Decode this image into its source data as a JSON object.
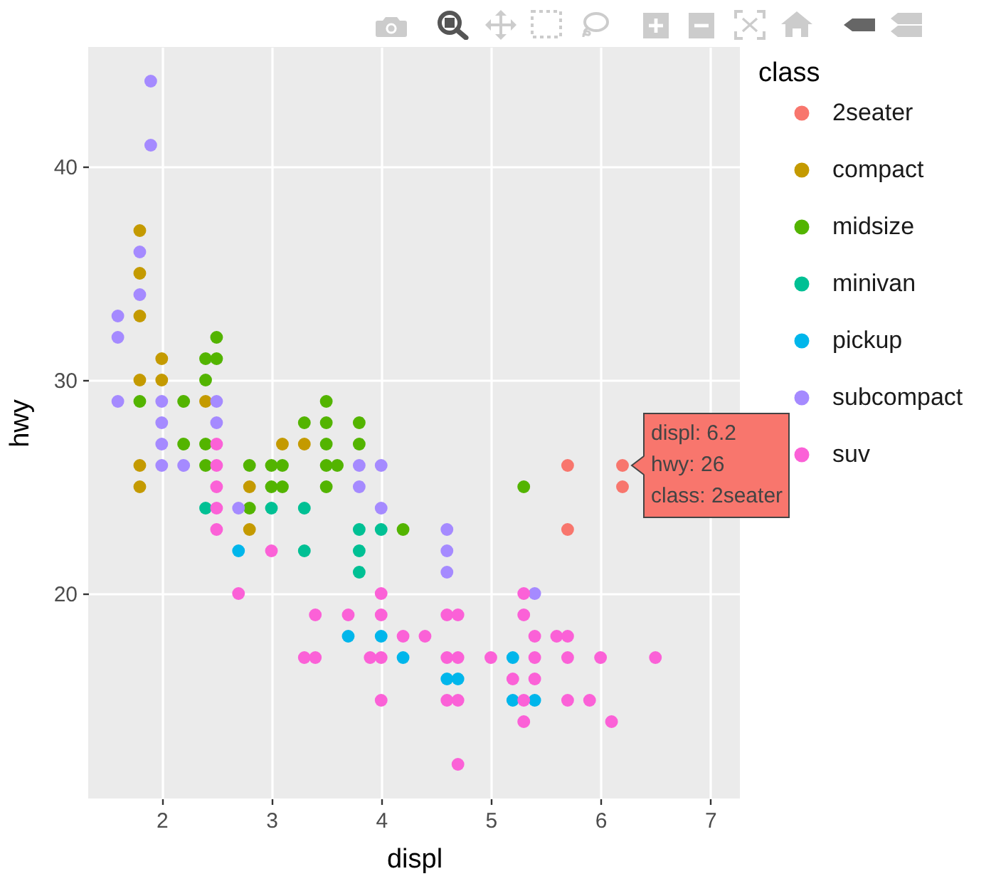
{
  "chart_data": {
    "type": "scatter",
    "xlabel": "displ",
    "ylabel": "hwy",
    "legend_title": "class",
    "xlim": [
      1.33,
      7.27
    ],
    "ylim": [
      10.4,
      45.6
    ],
    "xticks": [
      2,
      3,
      4,
      5,
      6,
      7
    ],
    "yticks": [
      20,
      30,
      40
    ],
    "grid": true,
    "legend": "right",
    "marker": "circle",
    "series": [
      {
        "name": "2seater",
        "color": "#F8766D",
        "x": [
          5.7,
          6.2,
          6.2,
          5.7
        ],
        "values": [
          26,
          26,
          25,
          23
        ]
      },
      {
        "name": "compact",
        "color": "#C49A00",
        "x": [
          1.8,
          1.8,
          1.8,
          2.0,
          1.8,
          2.0,
          2.4,
          3.1,
          3.3,
          1.8,
          1.8,
          2.8,
          2.8
        ],
        "values": [
          37,
          35,
          33,
          31,
          30,
          30,
          29,
          27,
          27,
          26,
          25,
          25,
          23
        ]
      },
      {
        "name": "midsize",
        "color": "#53B400",
        "x": [
          2.5,
          2.4,
          2.5,
          2.4,
          1.8,
          2.2,
          3.5,
          3.3,
          3.5,
          3.8,
          2.2,
          2.4,
          3.5,
          3.8,
          2.4,
          2.8,
          3.0,
          3.1,
          3.5,
          3.6,
          3.0,
          3.1,
          3.5,
          5.3,
          2.8,
          4.2
        ],
        "values": [
          32,
          31,
          31,
          30,
          29,
          29,
          29,
          28,
          28,
          28,
          27,
          27,
          27,
          27,
          26,
          26,
          26,
          26,
          26,
          26,
          25,
          25,
          25,
          25,
          24,
          23
        ]
      },
      {
        "name": "minivan",
        "color": "#00C094",
        "x": [
          2.4,
          3.0,
          3.3,
          3.8,
          4.0,
          3.3,
          3.8,
          3.8
        ],
        "values": [
          24,
          24,
          24,
          23,
          23,
          22,
          22,
          21
        ]
      },
      {
        "name": "pickup",
        "color": "#00B6EB",
        "x": [
          2.7,
          3.7,
          4.0,
          4.2,
          5.2,
          4.6,
          4.7,
          5.2,
          5.4
        ],
        "values": [
          22,
          18,
          18,
          17,
          17,
          16,
          16,
          15,
          15
        ]
      },
      {
        "name": "subcompact",
        "color": "#A58AFF",
        "x": [
          1.9,
          1.9,
          1.8,
          1.8,
          1.6,
          1.6,
          1.6,
          2.0,
          2.5,
          2.0,
          2.5,
          2.0,
          2.0,
          2.2,
          3.8,
          4.0,
          3.8,
          2.7,
          4.0,
          4.6,
          4.6,
          4.6,
          5.4
        ],
        "values": [
          44,
          41,
          36,
          34,
          33,
          32,
          29,
          29,
          29,
          28,
          28,
          27,
          26,
          26,
          26,
          26,
          25,
          24,
          24,
          23,
          22,
          21,
          20
        ]
      },
      {
        "name": "suv",
        "color": "#FB61D7",
        "x": [
          2.5,
          2.5,
          2.5,
          2.5,
          2.5,
          3.0,
          2.7,
          4.0,
          5.3,
          3.4,
          3.7,
          4.0,
          4.6,
          4.7,
          5.3,
          4.2,
          4.4,
          5.4,
          5.6,
          5.7,
          3.3,
          3.4,
          3.9,
          4.0,
          4.6,
          4.7,
          5.0,
          5.4,
          5.7,
          6.0,
          6.5,
          5.2,
          5.4,
          4.0,
          4.6,
          4.7,
          5.3,
          5.7,
          5.9,
          5.3,
          6.1,
          4.7
        ],
        "values": [
          27,
          26,
          25,
          24,
          23,
          22,
          20,
          20,
          20,
          19,
          19,
          19,
          19,
          19,
          19,
          18,
          18,
          18,
          18,
          18,
          17,
          17,
          17,
          17,
          17,
          17,
          17,
          17,
          17,
          17,
          17,
          16,
          16,
          15,
          15,
          15,
          15,
          15,
          15,
          14,
          14,
          12
        ]
      }
    ],
    "annotations": [
      {
        "text": "displ: 6.2\nhwy: 26\nclass: 2seater",
        "x": 6.2,
        "y": 26
      }
    ]
  }
}
